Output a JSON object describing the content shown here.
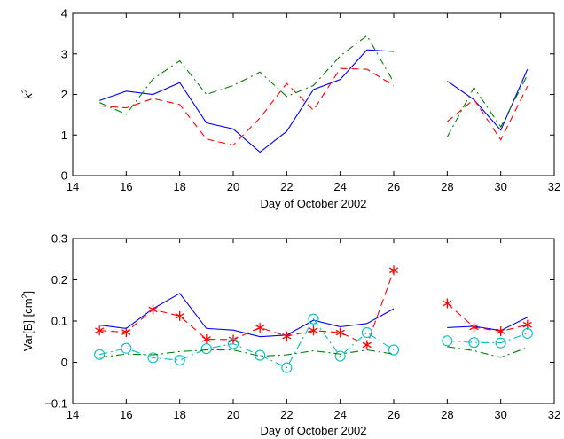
{
  "chart_data": [
    {
      "type": "line",
      "title": "",
      "xlabel": "Day of October 2002",
      "ylabel": "k",
      "ylabel_sup": "2",
      "xlim": [
        14,
        32
      ],
      "ylim": [
        0,
        4
      ],
      "xticks": [
        "14",
        "16",
        "18",
        "20",
        "22",
        "24",
        "26",
        "28",
        "30",
        "32"
      ],
      "yticks": [
        "0",
        "1",
        "2",
        "3",
        "4"
      ],
      "x": [
        15,
        16,
        17,
        18,
        19,
        20,
        21,
        22,
        23,
        24,
        25,
        26,
        27,
        28,
        29,
        30,
        31
      ],
      "series": [
        {
          "color": "#0000ff",
          "style": "solid",
          "marker": "none",
          "values": [
            1.85,
            2.08,
            2.0,
            2.29,
            1.3,
            1.15,
            0.58,
            1.09,
            2.12,
            2.37,
            3.1,
            3.06,
            null,
            2.33,
            1.87,
            1.12,
            2.62
          ]
        },
        {
          "color": "#ff0000",
          "style": "dashed",
          "marker": "none",
          "values": [
            1.72,
            1.67,
            1.9,
            1.75,
            0.9,
            0.75,
            1.42,
            2.27,
            1.61,
            2.64,
            2.62,
            2.22,
            null,
            1.33,
            1.88,
            0.88,
            2.2
          ]
        },
        {
          "color": "#008000",
          "style": "dashdot",
          "marker": "none",
          "values": [
            1.8,
            1.51,
            2.38,
            2.83,
            2.0,
            2.22,
            2.55,
            1.95,
            2.22,
            2.95,
            3.45,
            2.3,
            null,
            0.95,
            2.17,
            1.2,
            2.48
          ]
        }
      ]
    },
    {
      "type": "line",
      "title": "",
      "xlabel": "Day of October 2002",
      "ylabel": "Var[B]  [cm",
      "ylabel_sup": "2",
      "ylabel_end": "]",
      "xlim": [
        14,
        32
      ],
      "ylim": [
        -0.1,
        0.3
      ],
      "xticks": [
        "14",
        "16",
        "18",
        "20",
        "22",
        "24",
        "26",
        "28",
        "30",
        "32"
      ],
      "yticks": [
        "−0.1",
        "0",
        "0.1",
        "0.2",
        "0.3"
      ],
      "x": [
        15,
        16,
        17,
        18,
        19,
        20,
        21,
        22,
        23,
        24,
        25,
        26,
        27,
        28,
        29,
        30,
        31
      ],
      "series": [
        {
          "color": "#0000ff",
          "style": "solid",
          "marker": "none",
          "values": [
            0.09,
            0.082,
            0.13,
            0.167,
            0.082,
            0.078,
            0.062,
            0.066,
            0.102,
            0.086,
            0.094,
            0.13,
            null,
            0.084,
            0.087,
            0.077,
            0.109
          ]
        },
        {
          "color": "#ff0000",
          "style": "dashed",
          "marker": "asterisk",
          "values": [
            0.077,
            0.073,
            0.128,
            0.112,
            0.056,
            0.055,
            0.084,
            0.063,
            0.077,
            0.072,
            0.042,
            0.223,
            null,
            0.143,
            0.085,
            0.075,
            0.091
          ]
        },
        {
          "color": "#00bfbf",
          "style": "dashdot",
          "marker": "circle",
          "values": [
            0.019,
            0.034,
            0.011,
            0.005,
            0.033,
            0.045,
            0.017,
            -0.013,
            0.105,
            0.015,
            0.072,
            0.03,
            null,
            0.052,
            0.048,
            0.047,
            0.07
          ]
        },
        {
          "color": "#008000",
          "style": "dashdot",
          "marker": "none",
          "values": [
            0.012,
            0.02,
            0.018,
            0.026,
            0.03,
            0.03,
            0.015,
            0.018,
            0.028,
            0.02,
            0.03,
            0.02,
            null,
            0.038,
            0.028,
            0.012,
            0.036
          ]
        }
      ]
    }
  ]
}
